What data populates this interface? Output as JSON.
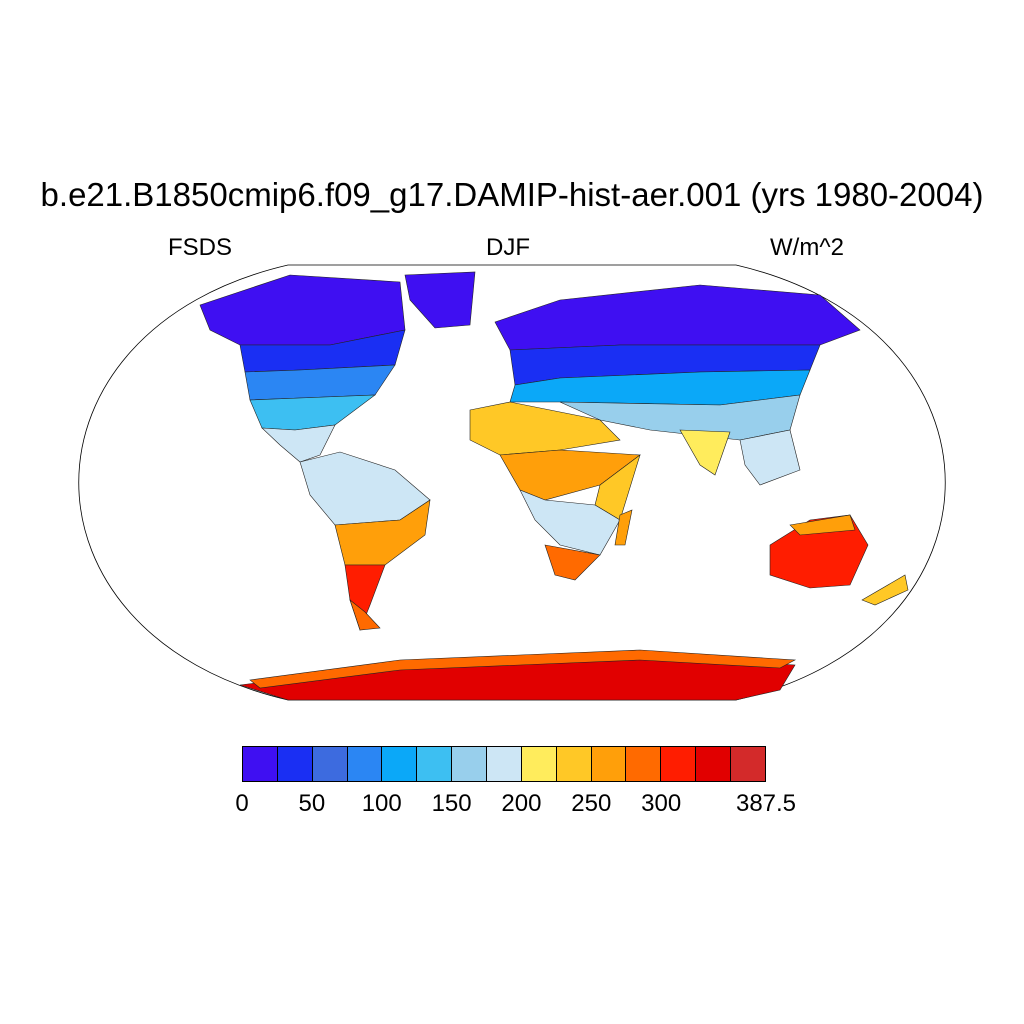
{
  "title": "b.e21.B1850cmip6.f09_g17.DAMIP-hist-aer.001 (yrs 1980-2004)",
  "subtitle": {
    "left": "FSDS",
    "center": "DJF",
    "right": "W/m^2"
  },
  "colorbar": {
    "colors": [
      "#3f0ff2",
      "#1a2ff3",
      "#3d6bdf",
      "#2b86f3",
      "#0ba8f8",
      "#3dbff2",
      "#98cfec",
      "#cde6f5",
      "#ffec5c",
      "#ffc826",
      "#ff9f0a",
      "#ff6a00",
      "#ff1d00",
      "#e10000",
      "#d32a2a"
    ],
    "tick_labels": [
      "0",
      "50",
      "100",
      "150",
      "200",
      "250",
      "300",
      "387.5"
    ],
    "tick_box_index": [
      0,
      2,
      4,
      6,
      8,
      10,
      12,
      15
    ]
  },
  "map": {
    "projection": "Robinson",
    "variable": "FSDS",
    "season": "DJF",
    "units": "W/m^2",
    "ocean_color": "#ffffff"
  }
}
